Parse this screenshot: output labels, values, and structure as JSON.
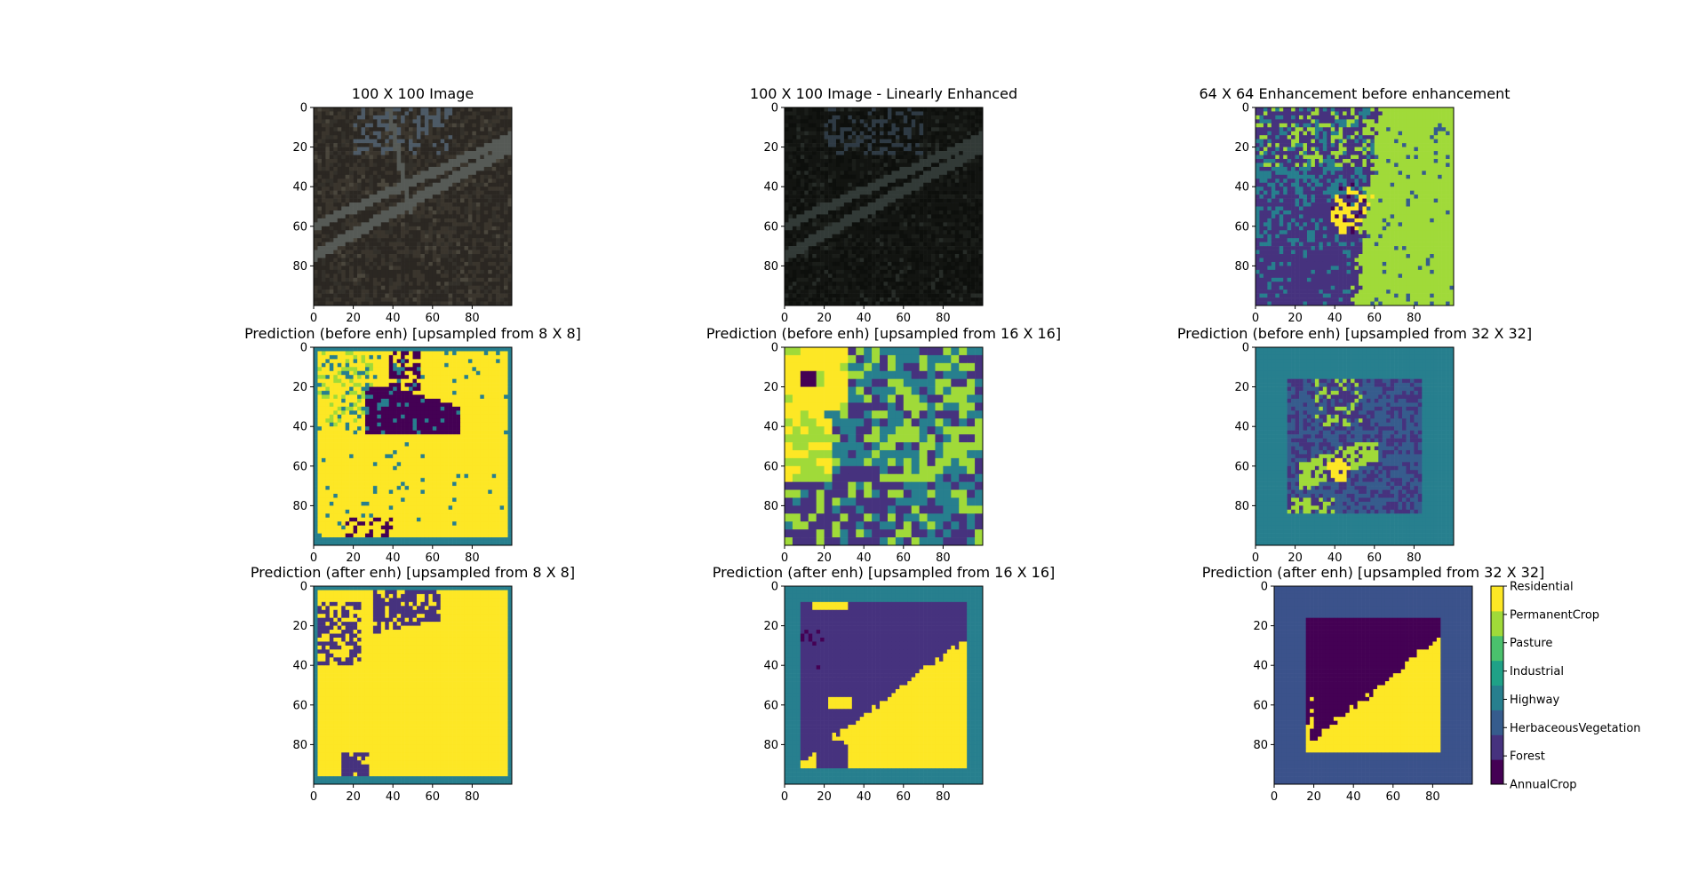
{
  "figure": {
    "background": "#ffffff"
  },
  "colormap": {
    "name": "viridis",
    "stops": [
      "#440154",
      "#46327e",
      "#365c8d",
      "#277f8e",
      "#1fa187",
      "#4ac16d",
      "#a0da39",
      "#fde725"
    ]
  },
  "colorbar": {
    "labels": [
      "AnnualCrop",
      "Forest",
      "HerbaceousVegetation",
      "Highway",
      "Industrial",
      "Pasture",
      "PermanentCrop",
      "Residential"
    ]
  },
  "chart_data": [
    {
      "type": "heatmap",
      "title": "100 X 100 Image",
      "kind": "rgb-image",
      "xticks": [
        "0",
        "20",
        "40",
        "60",
        "80"
      ],
      "yticks": [
        "0",
        "20",
        "40",
        "60",
        "80"
      ],
      "xlim": [
        0,
        100
      ],
      "ylim": [
        0,
        100
      ],
      "palette": [
        "#2b2722",
        "#3a352d",
        "#4a463c",
        "#565a56",
        "#33302a"
      ]
    },
    {
      "type": "heatmap",
      "title": "100 X 100 Image - Linearly Enhanced",
      "kind": "rgb-image",
      "xticks": [
        "0",
        "20",
        "40",
        "60",
        "80"
      ],
      "yticks": [
        "0",
        "20",
        "40",
        "60",
        "80"
      ],
      "xlim": [
        0,
        100
      ],
      "ylim": [
        0,
        100
      ],
      "palette": [
        "#121411",
        "#1a1d19",
        "#262b27",
        "#323a37",
        "#0d0f0c"
      ]
    },
    {
      "type": "heatmap",
      "title": "64 X 64 Enhancement before enhancement",
      "kind": "class-map",
      "xticks": [
        "0",
        "20",
        "40",
        "60",
        "80"
      ],
      "yticks": [
        "0",
        "20",
        "40",
        "60",
        "80"
      ],
      "xlim": [
        0,
        100
      ],
      "ylim": [
        0,
        100
      ],
      "regions": "left: Forest/HerbaceousVegetation noise; right: PermanentCrop; centre: Residential"
    },
    {
      "type": "heatmap",
      "title": "Prediction (before enh) [upsampled from 8 X 8]",
      "kind": "class-map",
      "xticks": [
        "0",
        "20",
        "40",
        "60",
        "80"
      ],
      "yticks": [
        "0",
        "20",
        "40",
        "60",
        "80"
      ],
      "xlim": [
        0,
        100
      ],
      "ylim": [
        0,
        100
      ]
    },
    {
      "type": "heatmap",
      "title": "Prediction (before enh) [upsampled from 16 X 16]",
      "kind": "class-map",
      "xticks": [
        "0",
        "20",
        "40",
        "60",
        "80"
      ],
      "yticks": [
        "0",
        "20",
        "40",
        "60",
        "80"
      ],
      "xlim": [
        0,
        100
      ],
      "ylim": [
        0,
        100
      ]
    },
    {
      "type": "heatmap",
      "title": "Prediction (before enh) [upsampled from 32 X 32]",
      "kind": "class-map",
      "xticks": [
        "0",
        "20",
        "40",
        "60",
        "80"
      ],
      "yticks": [
        "0",
        "20",
        "40",
        "60",
        "80"
      ],
      "xlim": [
        0,
        100
      ],
      "ylim": [
        0,
        100
      ]
    },
    {
      "type": "heatmap",
      "title": "Prediction (after enh) [upsampled from 8 X 8]",
      "kind": "class-map",
      "xticks": [
        "0",
        "20",
        "40",
        "60",
        "80"
      ],
      "yticks": [
        "0",
        "20",
        "40",
        "60",
        "80"
      ],
      "xlim": [
        0,
        100
      ],
      "ylim": [
        0,
        100
      ]
    },
    {
      "type": "heatmap",
      "title": "Prediction (after enh) [upsampled from 16 X 16]",
      "kind": "class-map",
      "xticks": [
        "0",
        "20",
        "40",
        "60",
        "80"
      ],
      "yticks": [
        "0",
        "20",
        "40",
        "60",
        "80"
      ],
      "xlim": [
        0,
        100
      ],
      "ylim": [
        0,
        100
      ]
    },
    {
      "type": "heatmap",
      "title": "Prediction (after enh) [upsampled from 32 X 32]",
      "kind": "class-map",
      "xticks": [
        "0",
        "20",
        "40",
        "60",
        "80"
      ],
      "yticks": [
        "0",
        "20",
        "40",
        "60",
        "80"
      ],
      "xlim": [
        0,
        100
      ],
      "ylim": [
        0,
        100
      ]
    }
  ]
}
